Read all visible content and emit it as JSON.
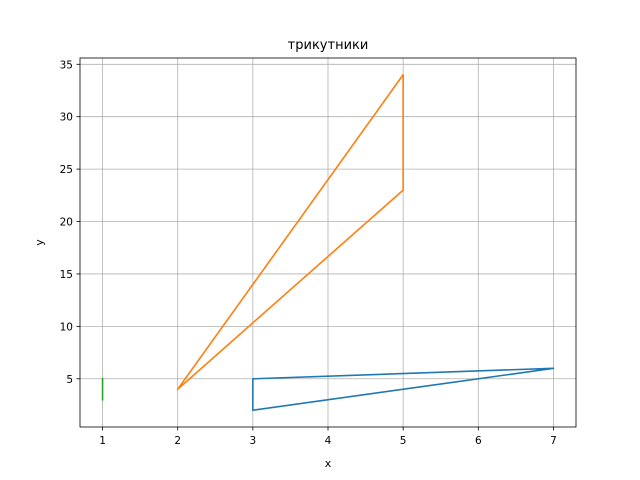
{
  "chart_data": {
    "type": "line",
    "title": "трикутники",
    "xlabel": "x",
    "ylabel": "y",
    "xlim": [
      0.7,
      7.3
    ],
    "ylim": [
      0.4,
      35.6
    ],
    "xticks": [
      1,
      2,
      3,
      4,
      5,
      6,
      7
    ],
    "yticks": [
      5,
      10,
      15,
      20,
      25,
      30,
      35
    ],
    "grid": true,
    "series": [
      {
        "color": "#1f77b4",
        "x": [
          3,
          7,
          3,
          3
        ],
        "y": [
          2,
          6,
          5,
          2
        ]
      },
      {
        "color": "#ff7f0e",
        "x": [
          2,
          5,
          5,
          2
        ],
        "y": [
          4,
          34,
          23,
          4
        ]
      },
      {
        "color": "#2ca02c",
        "x": [
          1,
          1
        ],
        "y": [
          3,
          5
        ]
      }
    ]
  }
}
